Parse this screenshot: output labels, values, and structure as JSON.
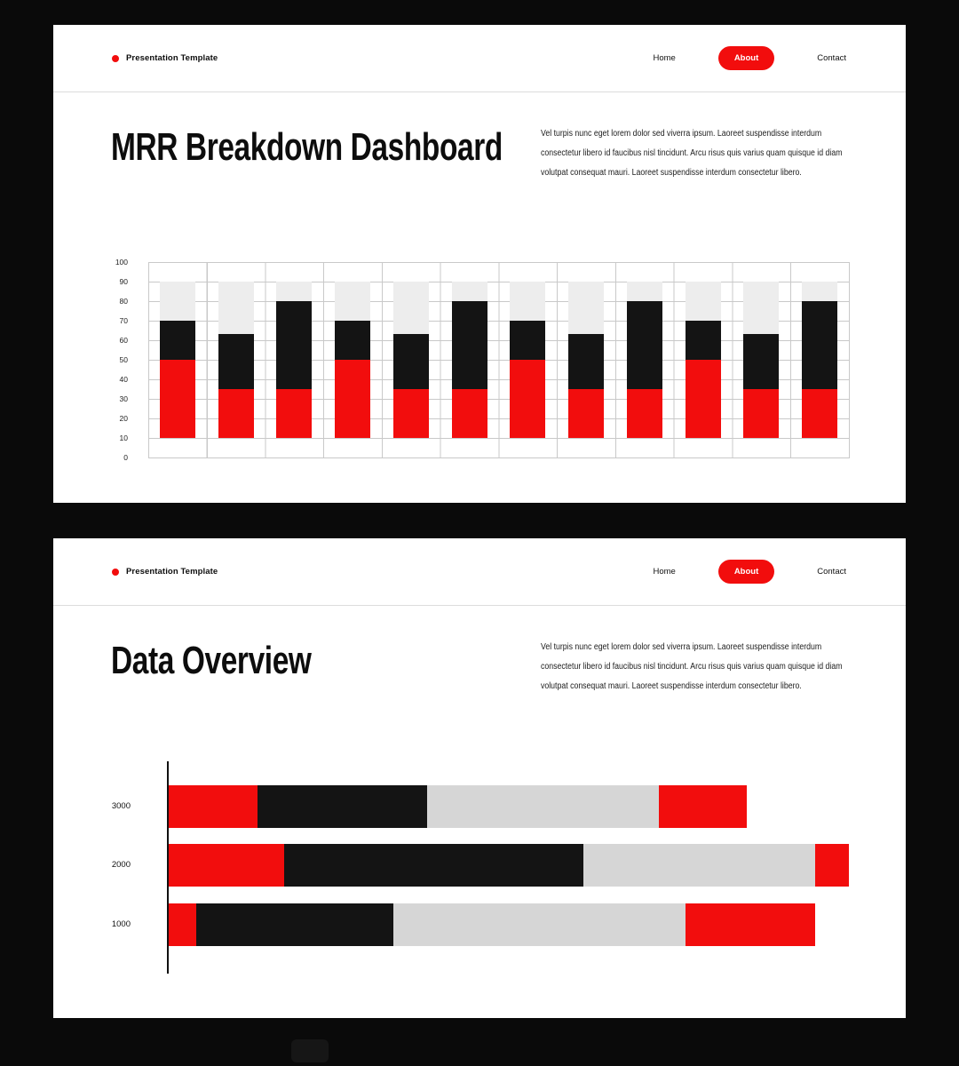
{
  "page": {
    "background": "#0a0a0a",
    "slide_background": "#ffffff",
    "accent_color": "#f20d0d"
  },
  "brand": {
    "label": "Presentation Template",
    "dot_color": "#f20d0d"
  },
  "nav": {
    "items": [
      {
        "label": "Home",
        "active": false
      },
      {
        "label": "About",
        "active": true
      },
      {
        "label": "Contact",
        "active": false
      }
    ],
    "active_bg": "#f20d0d",
    "active_text": "#ffffff"
  },
  "slides": [
    {
      "title": "MRR Breakdown Dashboard",
      "description": "Vel turpis nunc eget lorem dolor sed viverra ipsum. Laoreet suspendisse interdum consectetur libero id faucibus nisl tincidunt. Arcu risus quis varius quam quisque id diam volutpat consequat mauri. Laoreet suspendisse interdum consectetur libero."
    },
    {
      "title": "Data Overview",
      "description": "Vel turpis nunc eget lorem dolor sed viverra ipsum. Laoreet suspendisse interdum consectetur libero id faucibus nisl tincidunt. Arcu risus quis varius quam quisque id diam volutpat consequat mauri. Laoreet suspendisse interdum consectetur libero."
    }
  ],
  "chart_data": [
    {
      "type": "bar",
      "stacked": true,
      "orientation": "vertical",
      "title": "MRR Breakdown Dashboard",
      "xlabel": "",
      "ylabel": "",
      "ylim": [
        0,
        100
      ],
      "y_ticks": [
        100,
        90,
        80,
        70,
        60,
        50,
        40,
        30,
        20,
        10,
        0
      ],
      "grid": true,
      "legend": false,
      "segment_colors": {
        "red": "#f20d0d",
        "black": "#141414",
        "gray": "#ededed"
      },
      "bars": [
        {
          "red": [
            10,
            50
          ],
          "black": [
            50,
            70
          ],
          "gray": [
            70,
            90
          ]
        },
        {
          "red": [
            10,
            35
          ],
          "black": [
            35,
            63
          ],
          "gray": [
            63,
            90
          ]
        },
        {
          "red": [
            10,
            35
          ],
          "black": [
            35,
            80
          ],
          "gray": [
            80,
            90
          ]
        },
        {
          "red": [
            10,
            50
          ],
          "black": [
            50,
            70
          ],
          "gray": [
            70,
            90
          ]
        },
        {
          "red": [
            10,
            35
          ],
          "black": [
            35,
            63
          ],
          "gray": [
            63,
            90
          ]
        },
        {
          "red": [
            10,
            35
          ],
          "black": [
            35,
            80
          ],
          "gray": [
            80,
            90
          ]
        },
        {
          "red": [
            10,
            50
          ],
          "black": [
            50,
            70
          ],
          "gray": [
            70,
            90
          ]
        },
        {
          "red": [
            10,
            35
          ],
          "black": [
            35,
            63
          ],
          "gray": [
            63,
            90
          ]
        },
        {
          "red": [
            10,
            35
          ],
          "black": [
            35,
            80
          ],
          "gray": [
            80,
            90
          ]
        },
        {
          "red": [
            10,
            50
          ],
          "black": [
            50,
            70
          ],
          "gray": [
            70,
            90
          ]
        },
        {
          "red": [
            10,
            35
          ],
          "black": [
            35,
            63
          ],
          "gray": [
            63,
            90
          ]
        },
        {
          "red": [
            10,
            35
          ],
          "black": [
            35,
            80
          ],
          "gray": [
            80,
            90
          ]
        }
      ]
    },
    {
      "type": "bar",
      "stacked": true,
      "orientation": "horizontal",
      "title": "Data Overview",
      "categories": [
        "3000",
        "2000",
        "1000"
      ],
      "xlim": [
        0,
        100
      ],
      "grid": false,
      "legend": false,
      "series": [
        {
          "name": "red",
          "color": "#f20d0d",
          "values": [
            13,
            17,
            4
          ]
        },
        {
          "name": "black",
          "color": "#141414",
          "values": [
            25,
            44,
            29
          ]
        },
        {
          "name": "gray",
          "color": "#d6d6d6",
          "values": [
            34,
            34,
            43
          ]
        },
        {
          "name": "red-2",
          "color": "#f20d0d",
          "values": [
            13,
            5,
            19
          ]
        }
      ]
    }
  ]
}
